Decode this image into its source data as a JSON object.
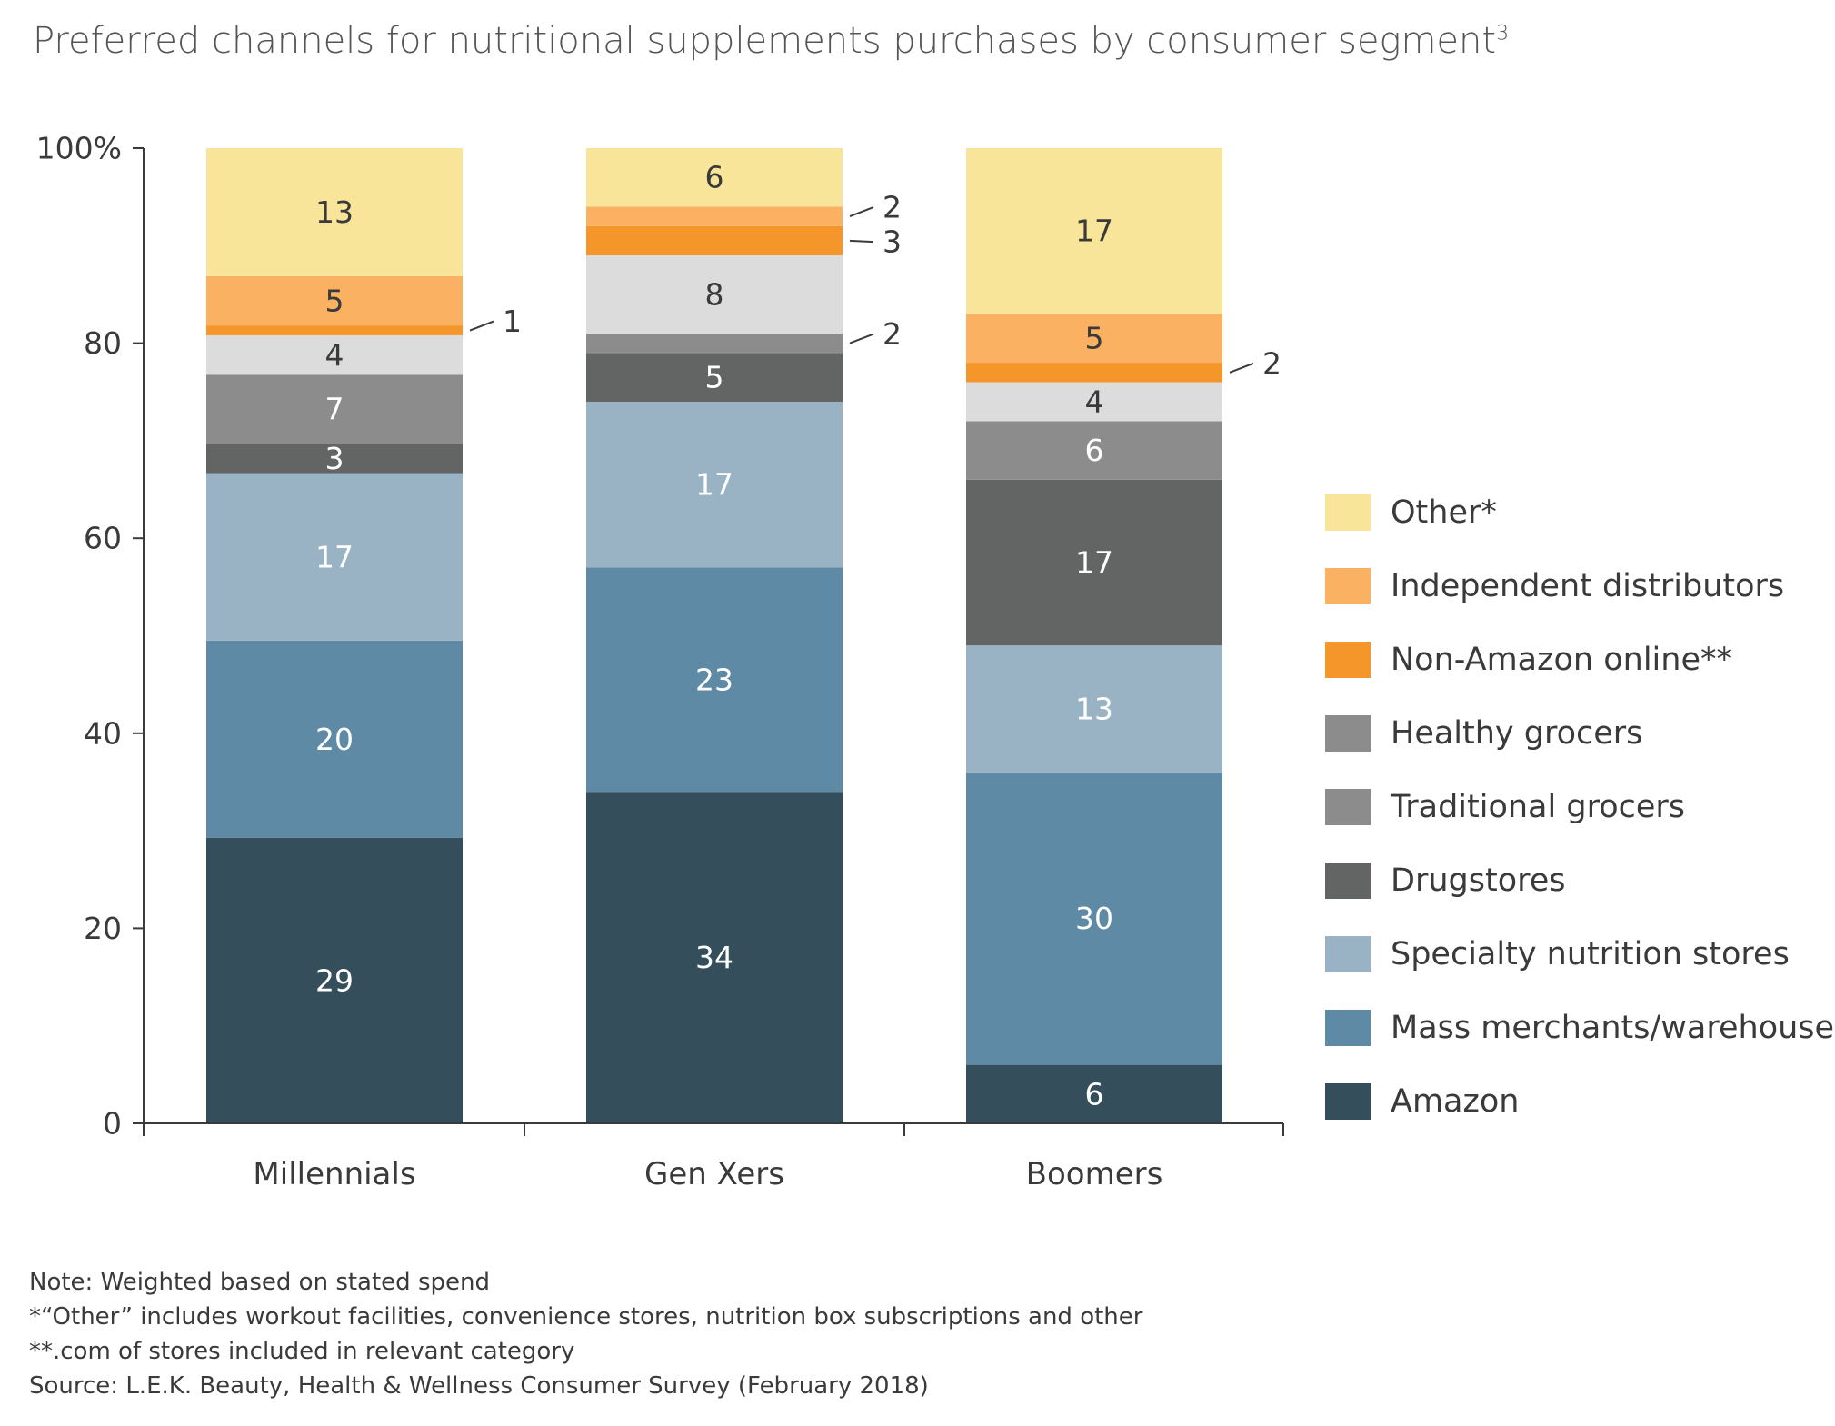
{
  "title": "Preferred channels for nutritional supplements purchases by consumer segment",
  "title_footnote": "3",
  "chart_data": {
    "type": "bar",
    "stacked": true,
    "orientation": "vertical",
    "title": "Preferred channels for nutritional supplements purchases by consumer segment",
    "xlabel": "",
    "ylabel": "",
    "ylim": [
      0,
      100
    ],
    "yticks": [
      {
        "value": 0,
        "label": "0"
      },
      {
        "value": 20,
        "label": "20"
      },
      {
        "value": 40,
        "label": "40"
      },
      {
        "value": 60,
        "label": "60"
      },
      {
        "value": 80,
        "label": "80"
      },
      {
        "value": 100,
        "label": "100%"
      }
    ],
    "categories": [
      "Millennials",
      "Gen Xers",
      "Boomers"
    ],
    "legend_position": "right",
    "grid": false,
    "series": [
      {
        "name": "Amazon",
        "color": "#344e5c",
        "text_color": "#ffffff",
        "values": [
          29,
          34,
          6
        ],
        "labels": [
          "29",
          "34",
          "6"
        ]
      },
      {
        "name": "Mass merchants/warehouses",
        "color": "#5e8aa5",
        "text_color": "#ffffff",
        "values": [
          20,
          23,
          30
        ],
        "labels": [
          "20",
          "23",
          "30"
        ]
      },
      {
        "name": "Specialty nutrition stores",
        "color": "#99b3c5",
        "text_color": "#ffffff",
        "values": [
          17,
          17,
          13
        ],
        "labels": [
          "17",
          "17",
          "13"
        ]
      },
      {
        "name": "Drugstores",
        "color": "#636564",
        "text_color": "#ffffff",
        "values": [
          3,
          5,
          17
        ],
        "labels": [
          "3",
          "5",
          "17"
        ]
      },
      {
        "name": "Traditional grocers",
        "color": "#8c8c8c",
        "text_color": "#ffffff",
        "values": [
          7,
          2,
          6
        ],
        "labels": [
          "7",
          "2",
          "6"
        ]
      },
      {
        "name": "Healthy grocers",
        "color": "#dcdcdc",
        "text_color": "#3a3a3a",
        "values": [
          4,
          8,
          4
        ],
        "labels": [
          "4",
          "8",
          "4"
        ]
      },
      {
        "name": "Non-Amazon online**",
        "color": "#f5962a",
        "text_color": "#3a3a3a",
        "values": [
          1,
          3,
          2
        ],
        "labels": [
          "1",
          "3",
          "2"
        ]
      },
      {
        "name": "Independent distributors",
        "color": "#fbb162",
        "text_color": "#3a3a3a",
        "values": [
          5,
          2,
          5
        ],
        "labels": [
          "5",
          "2",
          "5"
        ]
      },
      {
        "name": "Other*",
        "color": "#f9e59a",
        "text_color": "#3a3a3a",
        "values": [
          13,
          6,
          17
        ],
        "labels": [
          "13",
          "6",
          "17"
        ]
      }
    ],
    "legend": [
      {
        "name": "Other*",
        "color": "#f9e59a"
      },
      {
        "name": "Independent distributors",
        "color": "#fbb162"
      },
      {
        "name": "Non-Amazon online**",
        "color": "#f5962a"
      },
      {
        "name": "Healthy grocers",
        "color": "#8c8c8c"
      },
      {
        "name": "Traditional grocers",
        "color": "#8c8c8c"
      },
      {
        "name": "Drugstores",
        "color": "#636564"
      },
      {
        "name": "Specialty nutrition stores",
        "color": "#99b3c5"
      },
      {
        "name": "Mass merchants/warehouses",
        "color": "#5e8aa5"
      },
      {
        "name": "Amazon",
        "color": "#344e5c"
      }
    ],
    "callouts": [
      {
        "category": "Millennials",
        "series": "Non-Amazon online**",
        "label": "1"
      },
      {
        "category": "Gen Xers",
        "series": "Independent distributors",
        "label": "2"
      },
      {
        "category": "Gen Xers",
        "series": "Non-Amazon online**",
        "label": "3"
      },
      {
        "category": "Gen Xers",
        "series": "Traditional grocers",
        "label": "2"
      },
      {
        "category": "Boomers",
        "series": "Non-Amazon online**",
        "label": "2"
      }
    ]
  },
  "notes": [
    "Note: Weighted based on stated spend",
    "*“Other” includes workout facilities, convenience stores, nutrition box subscriptions and other",
    "**.com of stores included in relevant category",
    "Source: L.E.K. Beauty, Health & Wellness Consumer Survey (February 2018)"
  ]
}
